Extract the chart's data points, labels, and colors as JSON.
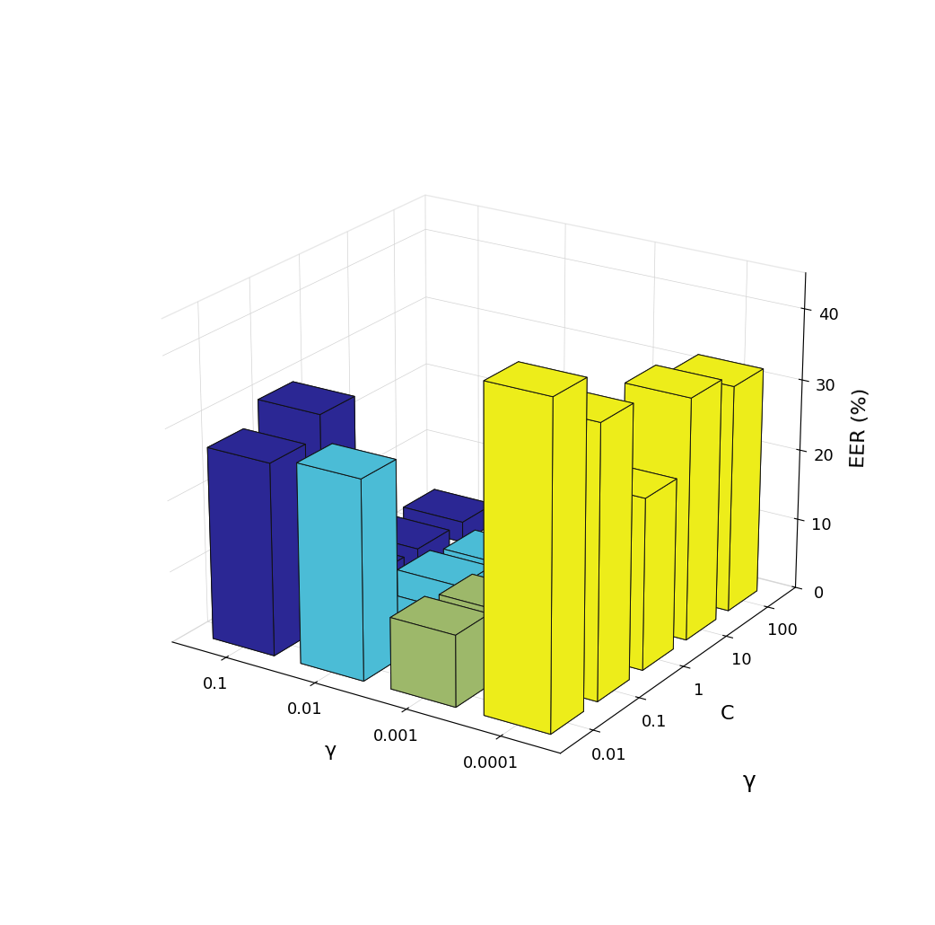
{
  "C_labels": [
    "0.01",
    "0.1",
    "1",
    "10",
    "100"
  ],
  "gamma_labels": [
    "0.1",
    "0.01",
    "0.001",
    "0.0001"
  ],
  "EER": {
    "comment": "rows=gamma index (0=0.1,1=0.01,2=0.001,3=0.0001), cols=C index (0=0.01,1=0.1,2=1,3=10,4=100)",
    "values": [
      [
        27,
        30,
        3,
        3,
        3
      ],
      [
        28,
        3,
        5,
        4,
        3
      ],
      [
        10,
        9,
        8,
        7,
        6
      ],
      [
        45,
        38,
        24,
        34,
        32
      ]
    ]
  },
  "colors_by_gamma": [
    "#2B2794",
    "#4BBCD6",
    "#9DB86A",
    "#EDED1A"
  ],
  "bar_width": 0.7,
  "bar_depth": 0.7,
  "zlim": [
    0,
    45
  ],
  "zticks": [
    0,
    10,
    20,
    30,
    40
  ],
  "ylabel": "EER (%)",
  "xlabel": "C",
  "gamma_label": "γ",
  "zlabel_fontsize": 14,
  "tick_fontsize": 13,
  "label_fontsize": 16,
  "elev": 22,
  "azim": -57,
  "background_color": "#ffffff",
  "edge_color": "#111111",
  "edge_linewidth": 0.7
}
